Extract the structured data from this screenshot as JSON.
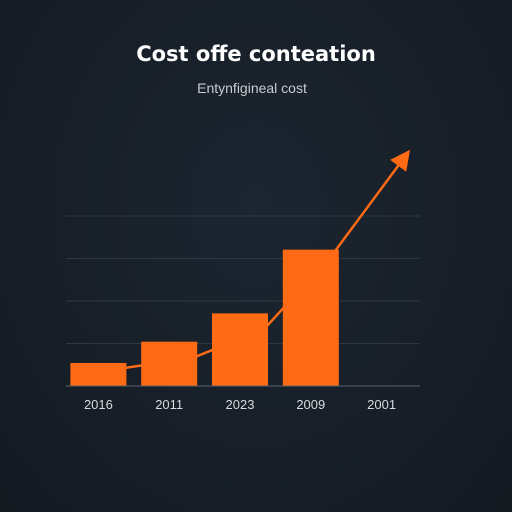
{
  "chart_data": {
    "type": "bar",
    "title": "Cost offe conteation",
    "subtitle": "Entynfigineal cost",
    "categories": [
      "2016",
      "2011",
      "2023",
      "2009",
      "2001"
    ],
    "values": [
      6.5,
      12.5,
      20.5,
      38.5,
      null
    ],
    "trend_line": {
      "points": [
        {
          "x": 0,
          "y": 5
        },
        {
          "x": 1,
          "y": 8
        },
        {
          "x": 2,
          "y": 16
        },
        {
          "x": 3,
          "y": 38
        },
        {
          "x": 4,
          "y": 65
        }
      ]
    },
    "ylim": [
      0,
      48
    ],
    "grid": true,
    "legend": "none"
  },
  "colors": {
    "background": "#161d26",
    "bar": "#ff6a14",
    "line": "#ff6a14",
    "grid": "#2e3742",
    "axis": "#5a626c"
  }
}
